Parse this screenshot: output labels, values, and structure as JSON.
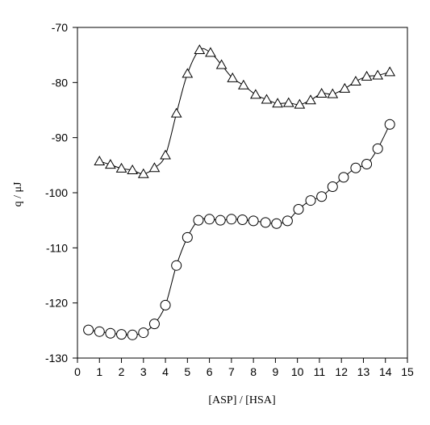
{
  "chart_data": {
    "type": "line",
    "title": "",
    "xlabel": "[ASP] / [HSA]",
    "ylabel": "q / μJ",
    "xlim": [
      0,
      15
    ],
    "ylim": [
      -130,
      -70
    ],
    "xticks": [
      0,
      1,
      2,
      3,
      4,
      5,
      6,
      7,
      8,
      9,
      10,
      11,
      12,
      13,
      14,
      15
    ],
    "yticks": [
      -70,
      -80,
      -90,
      -100,
      -110,
      -120,
      -130
    ],
    "grid": false,
    "legend": "none",
    "series": [
      {
        "marker": "triangle",
        "x": [
          1.0,
          1.5,
          2.0,
          2.5,
          3.0,
          3.5,
          4.0,
          4.5,
          5.0,
          5.55,
          6.05,
          6.55,
          7.05,
          7.55,
          8.1,
          8.6,
          9.1,
          9.6,
          10.1,
          10.6,
          11.1,
          11.6,
          12.15,
          12.65,
          13.15,
          13.65,
          14.2
        ],
        "y": [
          -94.3,
          -94.9,
          -95.6,
          -95.9,
          -96.6,
          -95.5,
          -93.2,
          -85.6,
          -78.4,
          -74.1,
          -74.6,
          -76.8,
          -79.2,
          -80.5,
          -82.2,
          -83.1,
          -83.8,
          -83.7,
          -84.0,
          -83.2,
          -82.0,
          -82.1,
          -81.1,
          -79.8,
          -78.9,
          -78.7,
          -78.1
        ]
      },
      {
        "marker": "circle",
        "x": [
          0.5,
          1.0,
          1.5,
          2.0,
          2.5,
          3.0,
          3.5,
          4.0,
          4.5,
          5.0,
          5.5,
          6.0,
          6.5,
          7.0,
          7.5,
          8.0,
          8.55,
          9.05,
          9.55,
          10.05,
          10.6,
          11.1,
          11.6,
          12.1,
          12.65,
          13.15,
          13.65,
          14.2
        ],
        "y": [
          -124.9,
          -125.2,
          -125.5,
          -125.7,
          -125.8,
          -125.4,
          -123.8,
          -120.4,
          -113.2,
          -108.1,
          -105.0,
          -104.8,
          -105.0,
          -104.8,
          -104.9,
          -105.1,
          -105.4,
          -105.6,
          -105.1,
          -103.0,
          -101.4,
          -100.7,
          -98.9,
          -97.2,
          -95.5,
          -94.8,
          -92.0,
          -87.6
        ]
      }
    ]
  }
}
